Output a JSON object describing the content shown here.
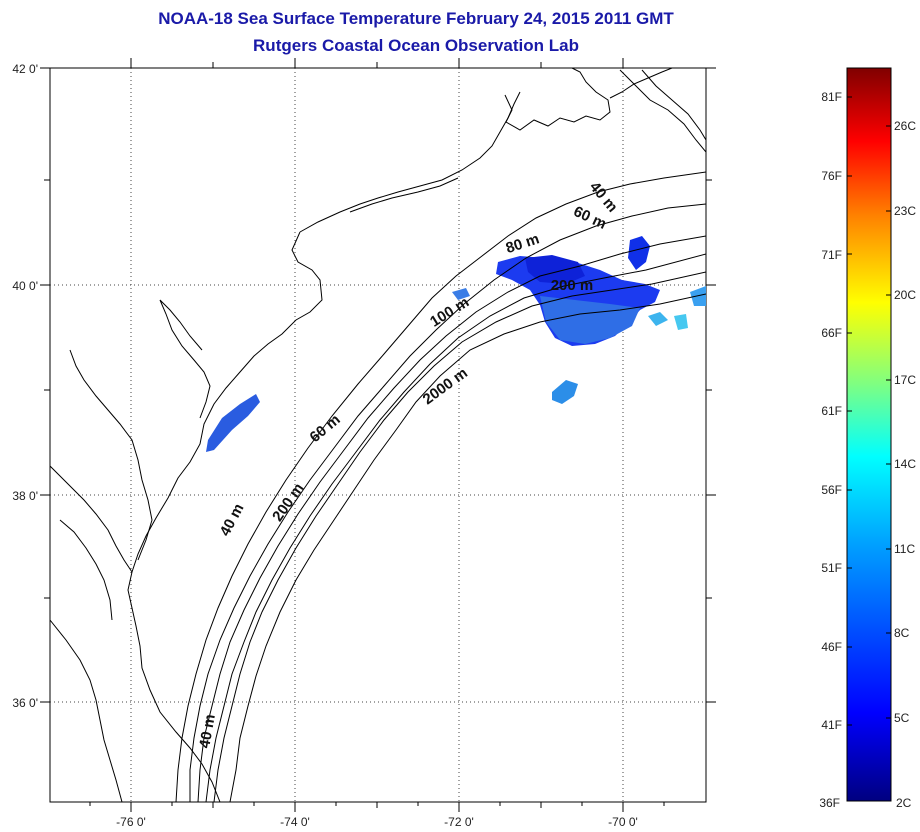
{
  "title": "NOAA-18 Sea Surface Temperature February 24, 2015 2011 GMT",
  "subtitle": "Rutgers Coastal Ocean Observation Lab",
  "map": {
    "lon_range": [
      -77,
      -69
    ],
    "lat_range": [
      35,
      42
    ],
    "lon_ticks": [
      "-76 0'",
      "-74 0'",
      "-72 0'",
      "-70 0'"
    ],
    "lat_ticks": [
      "42 0'",
      "40 0'",
      "38 0'",
      "36 0'"
    ],
    "contour_labels": [
      "40 m",
      "60 m",
      "80 m",
      "200 m",
      "100 m",
      "2000 m",
      "60 m",
      "40 m",
      "200 m",
      "40 m"
    ]
  },
  "colorbar": {
    "fahrenheit_labels": [
      "81F",
      "76F",
      "71F",
      "66F",
      "61F",
      "56F",
      "51F",
      "46F",
      "41F",
      "36F"
    ],
    "celsius_labels": [
      "26C",
      "23C",
      "20C",
      "17C",
      "14C",
      "11C",
      "8C",
      "5C",
      "2C"
    ],
    "colors": [
      "#000080",
      "#0000ff",
      "#00a0ff",
      "#00ffff",
      "#80ff80",
      "#ffff00",
      "#ff8000",
      "#ff0000",
      "#800000"
    ]
  }
}
